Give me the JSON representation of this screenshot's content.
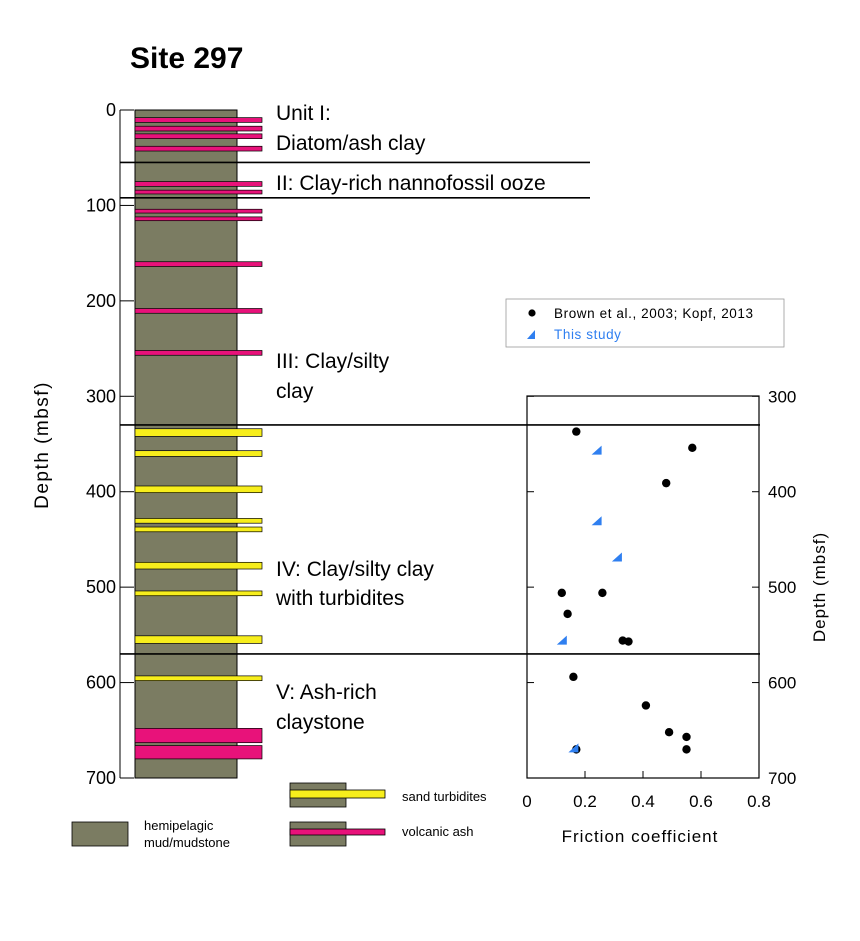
{
  "title": "Site 297",
  "colors": {
    "mud": "#7b7c62",
    "ash": "#e8127a",
    "sand": "#f7ee1c",
    "line": "#000000",
    "this_study": "#2f7ff0"
  },
  "left_axis": {
    "label": "Depth (mbsf)",
    "ticks": [
      "0",
      "100",
      "200",
      "300",
      "400",
      "500",
      "600",
      "700"
    ]
  },
  "units": [
    {
      "line1": "Unit I:",
      "line2": "Diatom/ash clay"
    },
    {
      "line1": "II: Clay-rich nannofossil ooze",
      "line2": ""
    },
    {
      "line1": "III: Clay/silty",
      "line2": "clay"
    },
    {
      "line1": "IV: Clay/silty clay",
      "line2": "with turbidites"
    },
    {
      "line1": "V: Ash-rich",
      "line2": "claystone"
    }
  ],
  "column": {
    "depth_top": 0,
    "depth_bottom": 700,
    "unit_boundaries": [
      55,
      92,
      330,
      570
    ],
    "ash_layers": [
      {
        "top": 8,
        "bottom": 13
      },
      {
        "top": 17,
        "bottom": 22
      },
      {
        "top": 25,
        "bottom": 30
      },
      {
        "top": 38,
        "bottom": 43
      },
      {
        "top": 75,
        "bottom": 80
      },
      {
        "top": 84,
        "bottom": 88
      },
      {
        "top": 104,
        "bottom": 108
      },
      {
        "top": 112,
        "bottom": 116
      },
      {
        "top": 159,
        "bottom": 164
      },
      {
        "top": 208,
        "bottom": 213
      },
      {
        "top": 252,
        "bottom": 257
      },
      {
        "top": 648,
        "bottom": 663
      },
      {
        "top": 666,
        "bottom": 680
      }
    ],
    "sand_layers": [
      {
        "top": 334,
        "bottom": 342
      },
      {
        "top": 357,
        "bottom": 363
      },
      {
        "top": 394,
        "bottom": 401
      },
      {
        "top": 428,
        "bottom": 433
      },
      {
        "top": 437,
        "bottom": 442
      },
      {
        "top": 474,
        "bottom": 481
      },
      {
        "top": 504,
        "bottom": 509
      },
      {
        "top": 551,
        "bottom": 559
      },
      {
        "top": 593,
        "bottom": 598
      }
    ]
  },
  "legend": {
    "sand": "sand turbidites",
    "ash": "volcanic ash",
    "mud_line1": "hemipelagic",
    "mud_line2": "mud/mudstone"
  },
  "chart_data": {
    "type": "scatter",
    "xlabel": "Friction coefficient",
    "ylabel": "Depth (mbsf)",
    "xlim": [
      0,
      0.8
    ],
    "ylim": [
      300,
      700
    ],
    "x_ticks": [
      "0",
      "0.2",
      "0.4",
      "0.6",
      "0.8"
    ],
    "y_ticks": [
      "300",
      "400",
      "500",
      "600",
      "700"
    ],
    "y_inverted": true,
    "y_axis_side": "right",
    "legend_position": "top-left",
    "series": [
      {
        "name": "Brown et al., 2003; Kopf, 2013",
        "marker": "circle",
        "color": "#000000",
        "points": [
          {
            "x": 0.17,
            "y": 337
          },
          {
            "x": 0.57,
            "y": 354
          },
          {
            "x": 0.48,
            "y": 391
          },
          {
            "x": 0.12,
            "y": 506
          },
          {
            "x": 0.26,
            "y": 506
          },
          {
            "x": 0.14,
            "y": 528
          },
          {
            "x": 0.33,
            "y": 556
          },
          {
            "x": 0.35,
            "y": 557
          },
          {
            "x": 0.16,
            "y": 594
          },
          {
            "x": 0.41,
            "y": 624
          },
          {
            "x": 0.49,
            "y": 652
          },
          {
            "x": 0.55,
            "y": 657
          },
          {
            "x": 0.55,
            "y": 670
          },
          {
            "x": 0.17,
            "y": 670
          }
        ]
      },
      {
        "name": "This study",
        "marker": "triangle",
        "color": "#2f7ff0",
        "points": [
          {
            "x": 0.24,
            "y": 357
          },
          {
            "x": 0.24,
            "y": 431
          },
          {
            "x": 0.31,
            "y": 469
          },
          {
            "x": 0.12,
            "y": 556
          },
          {
            "x": 0.16,
            "y": 669
          }
        ]
      }
    ]
  }
}
